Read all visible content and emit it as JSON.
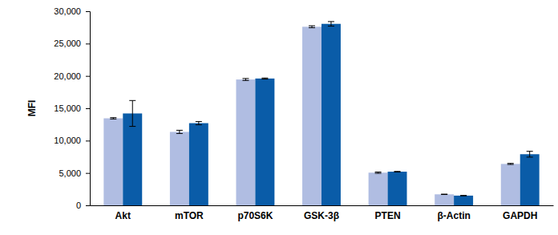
{
  "chart_data": {
    "type": "bar",
    "y_label": "MFI",
    "categories": [
      "Akt",
      "mTOR",
      "p70S6K",
      "GSK-3β",
      "PTEN",
      "β-Actin",
      "GAPDH"
    ],
    "series": [
      {
        "color": "#b0bde2",
        "values": [
          13450,
          11350,
          19450,
          27600,
          5050,
          1700,
          6400
        ],
        "errors": [
          100,
          250,
          150,
          150,
          100,
          30,
          80
        ]
      },
      {
        "color": "#0a5ca8",
        "values": [
          14200,
          12700,
          19600,
          28050,
          5200,
          1500,
          7900
        ],
        "errors": [
          2000,
          250,
          80,
          350,
          40,
          30,
          450
        ]
      }
    ],
    "ylim": [
      0,
      30000
    ],
    "yticks": [
      0,
      {
        "value": 5000,
        "label": "5,000"
      },
      {
        "value": 10000,
        "label": "10,000"
      },
      {
        "value": 15000,
        "label": "15,000"
      },
      {
        "value": 20000,
        "label": "20,000"
      },
      {
        "value": 25000,
        "label": "25,000"
      },
      {
        "value": 30000,
        "label": "30,000"
      }
    ],
    "grid": false
  }
}
